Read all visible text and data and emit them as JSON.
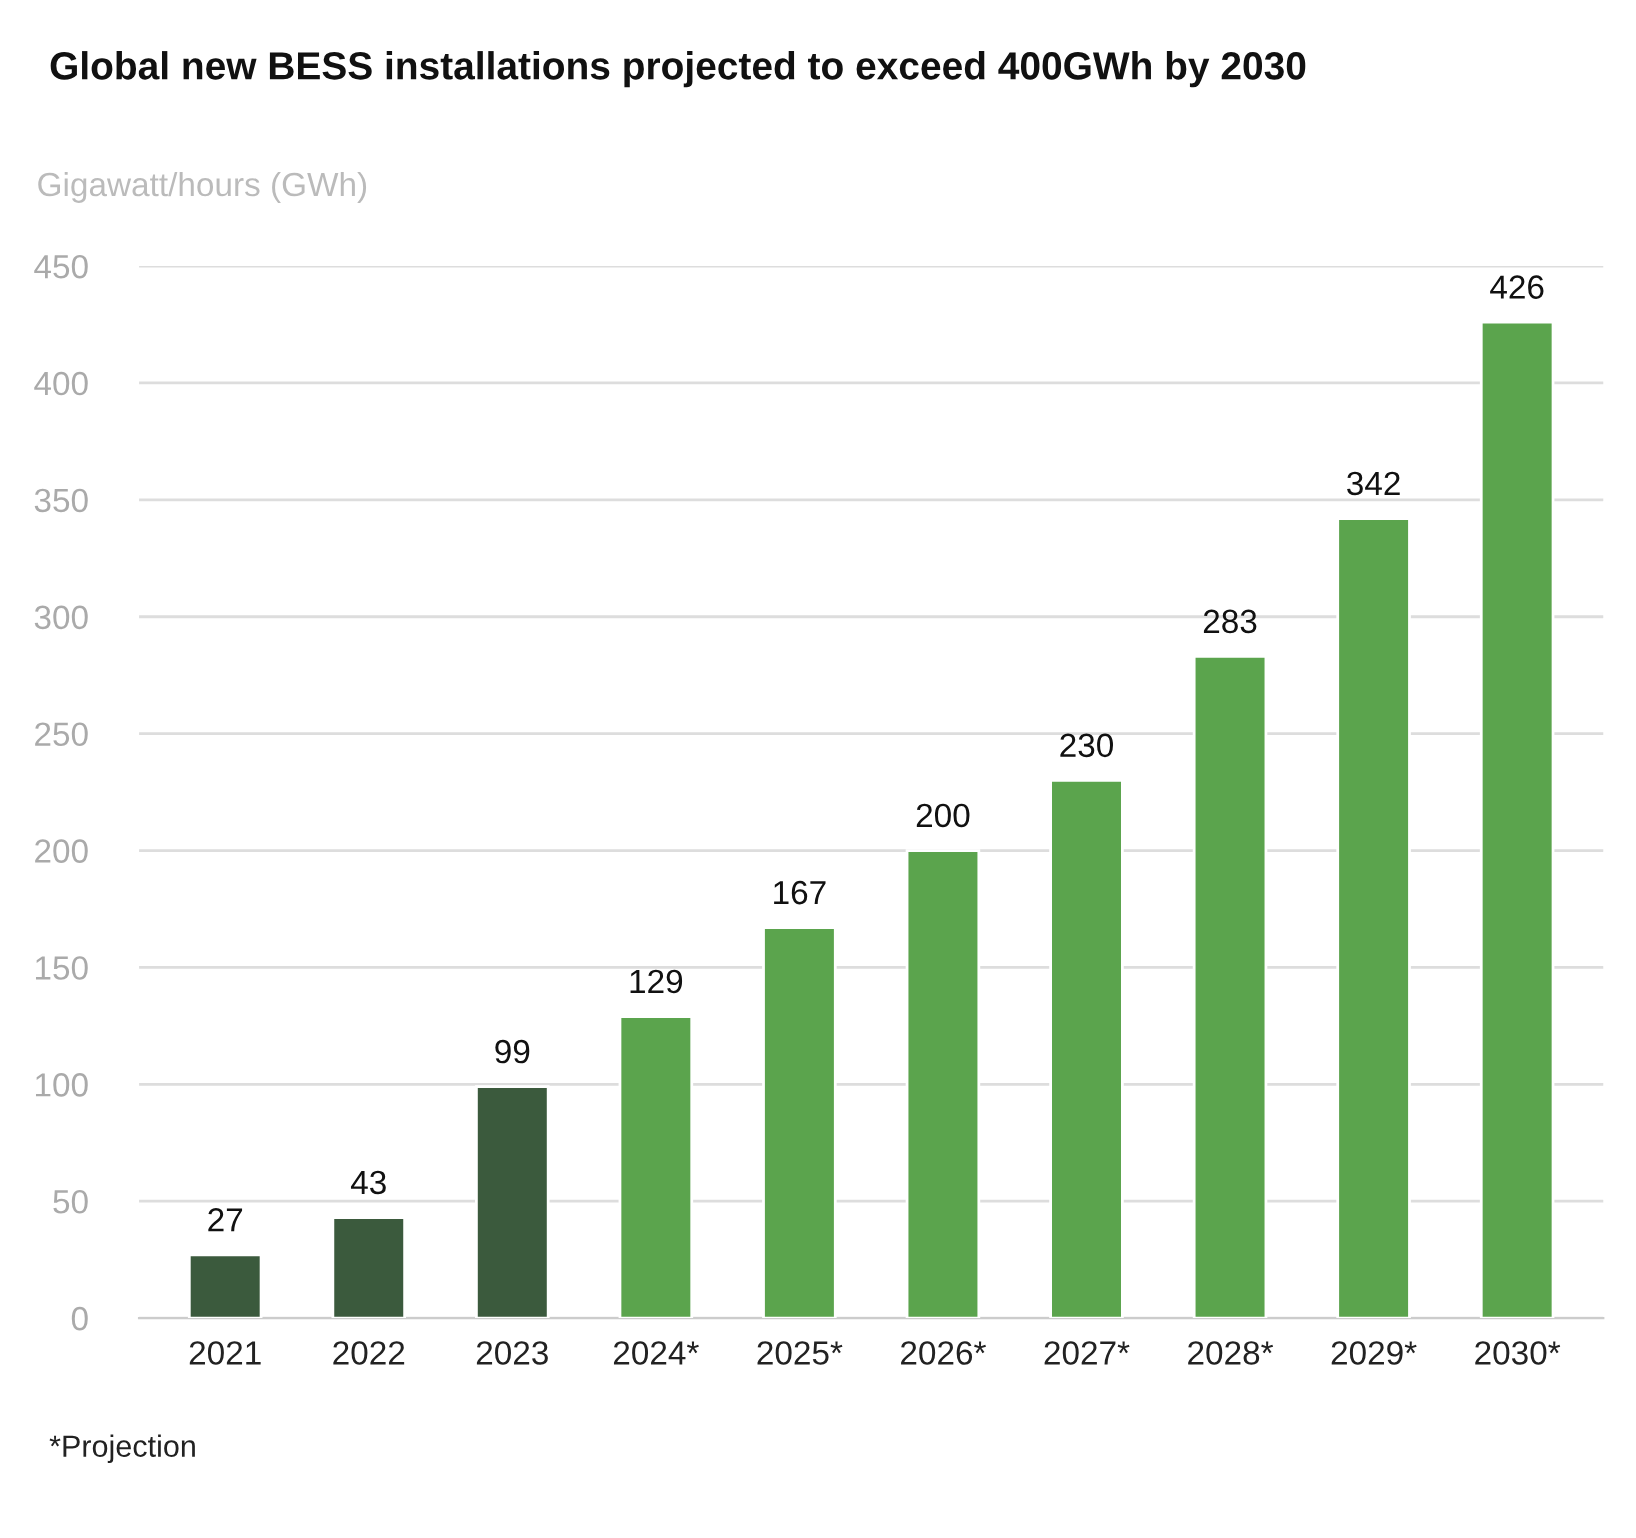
{
  "chart_data": {
    "type": "bar",
    "title": "Global new BESS installations projected to exceed 400GWh by 2030",
    "ylabel": "Gigawatt/hours (GWh)",
    "categories": [
      "2021",
      "2022",
      "2023",
      "2024*",
      "2025*",
      "2026*",
      "2027*",
      "2028*",
      "2029*",
      "2030*"
    ],
    "values": [
      27,
      43,
      99,
      129,
      167,
      200,
      230,
      283,
      342,
      426
    ],
    "colors": [
      "#3b5a3d",
      "#3b5a3d",
      "#3b5a3d",
      "#5ba44d",
      "#5ba44d",
      "#5ba44d",
      "#5ba44d",
      "#5ba44d",
      "#5ba44d",
      "#5ba44d"
    ],
    "ylim": [
      0,
      450
    ],
    "yticks": [
      0,
      50,
      100,
      150,
      200,
      250,
      300,
      350,
      400,
      450
    ],
    "grid": "y",
    "data_labels": true,
    "legend": false,
    "annotations": [
      "*Projection"
    ]
  }
}
